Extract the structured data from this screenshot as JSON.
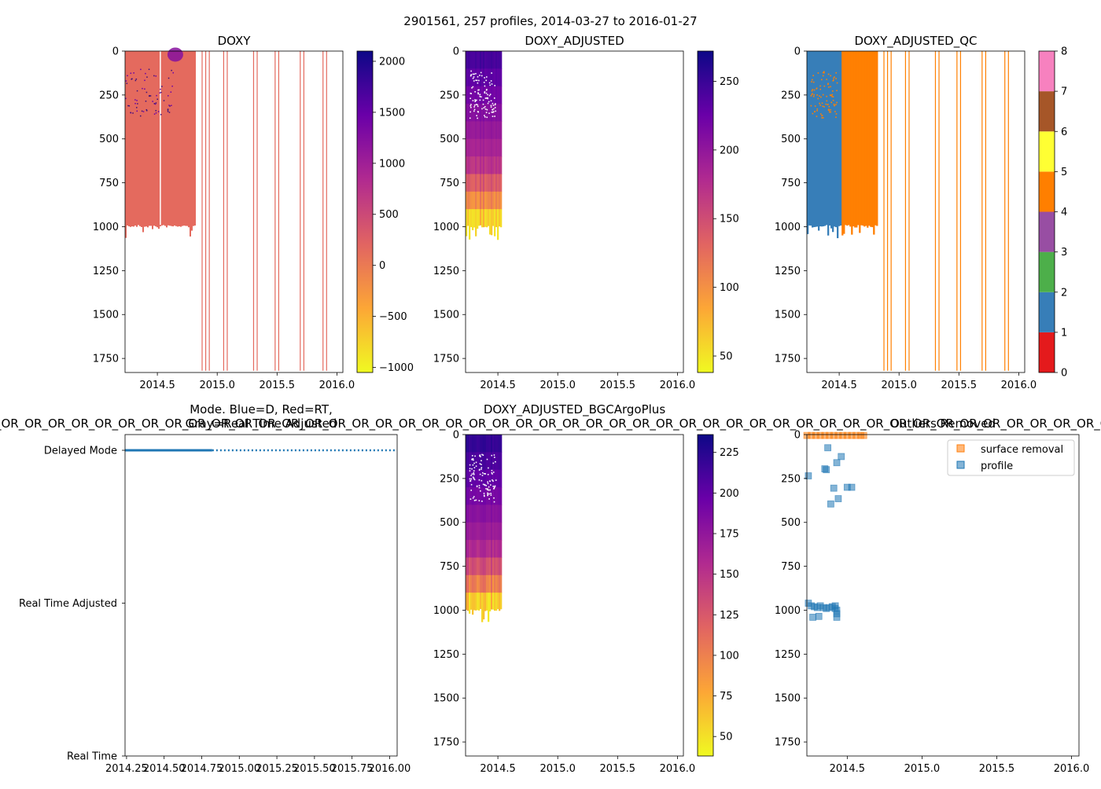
{
  "figure": {
    "suptitle": "2901561, 257 profiles, 2014-03-27 to 2016-01-27"
  },
  "colors": {
    "plasma_r": [
      "#f0f921",
      "#fca636",
      "#e16462",
      "#b12a90",
      "#6a00a8",
      "#0d0887"
    ],
    "qc": [
      "#e41a1c",
      "#377eb8",
      "#4daf4a",
      "#984ea3",
      "#ff7f00",
      "#ffff33",
      "#a65628",
      "#f781bf",
      "#999999"
    ],
    "mode_line": "#1f77b4",
    "surface_removal": "#ff7f0e",
    "profile": "#1f77b4"
  },
  "chart_data": [
    {
      "id": "doxy",
      "type": "heatmap",
      "title": "DOXY",
      "xlim": [
        2014.23,
        2016.05
      ],
      "ylim": [
        1830,
        0
      ],
      "x_ticks": [
        {
          "v": 2014.5,
          "t": "2014.5"
        },
        {
          "v": 2015.0,
          "t": "2015.0"
        },
        {
          "v": 2015.5,
          "t": "2015.5"
        },
        {
          "v": 2016.0,
          "t": "2016.0"
        }
      ],
      "y_ticks": [
        {
          "v": 0,
          "t": "0"
        },
        {
          "v": 250,
          "t": "250"
        },
        {
          "v": 500,
          "t": "500"
        },
        {
          "v": 750,
          "t": "750"
        },
        {
          "v": 1000,
          "t": "1000"
        },
        {
          "v": 1250,
          "t": "1250"
        },
        {
          "v": 1500,
          "t": "1500"
        },
        {
          "v": 1750,
          "t": "1750"
        }
      ],
      "colorbar": {
        "range": [
          -1050,
          2100
        ],
        "ticks": [
          {
            "v": -1000,
            "t": "−1000"
          },
          {
            "v": -500,
            "t": "−500"
          },
          {
            "v": 0,
            "t": "0"
          },
          {
            "v": 500,
            "t": "500"
          },
          {
            "v": 1000,
            "t": "1000"
          },
          {
            "v": 1500,
            "t": "1500"
          },
          {
            "v": 2000,
            "t": "2000"
          }
        ]
      },
      "dense_block": {
        "x_range": [
          2014.23,
          2014.82
        ],
        "depth_range": [
          0,
          990
        ],
        "value": 150
      },
      "sparse_profiles_x": [
        2014.87,
        2014.9,
        2014.93,
        2015.05,
        2015.08,
        2015.3,
        2015.33,
        2015.48,
        2015.51,
        2015.69,
        2015.72,
        2015.88,
        2015.91
      ],
      "sparse_profile_max_depth": 1820
    },
    {
      "id": "doxy_adjusted",
      "type": "heatmap",
      "title": "DOXY_ADJUSTED",
      "xlim": [
        2014.23,
        2016.05
      ],
      "ylim": [
        1830,
        0
      ],
      "x_ticks": [
        {
          "v": 2014.5,
          "t": "2014.5"
        },
        {
          "v": 2015.0,
          "t": "2015.0"
        },
        {
          "v": 2015.5,
          "t": "2015.5"
        },
        {
          "v": 2016.0,
          "t": "2016.0"
        }
      ],
      "y_ticks": [
        {
          "v": 0,
          "t": "0"
        },
        {
          "v": 250,
          "t": "250"
        },
        {
          "v": 500,
          "t": "500"
        },
        {
          "v": 750,
          "t": "750"
        },
        {
          "v": 1000,
          "t": "1000"
        },
        {
          "v": 1250,
          "t": "1250"
        },
        {
          "v": 1500,
          "t": "1500"
        },
        {
          "v": 1750,
          "t": "1750"
        }
      ],
      "colorbar": {
        "range": [
          38,
          272
        ],
        "ticks": [
          {
            "v": 50,
            "t": "50"
          },
          {
            "v": 100,
            "t": "100"
          },
          {
            "v": 150,
            "t": "150"
          },
          {
            "v": 200,
            "t": "200"
          },
          {
            "v": 250,
            "t": "250"
          }
        ]
      },
      "block": {
        "x_range": [
          2014.23,
          2014.52
        ],
        "depth_range": [
          0,
          990
        ]
      },
      "profile_depths": [
        0,
        300,
        650,
        850,
        990
      ],
      "profile_values": [
        250,
        215,
        175,
        110,
        50
      ]
    },
    {
      "id": "doxy_adjusted_qc",
      "type": "heatmap",
      "title": "DOXY_ADJUSTED_QC",
      "xlim": [
        2014.23,
        2016.05
      ],
      "ylim": [
        1830,
        0
      ],
      "x_ticks": [
        {
          "v": 2014.5,
          "t": "2014.5"
        },
        {
          "v": 2015.0,
          "t": "2015.0"
        },
        {
          "v": 2015.5,
          "t": "2015.5"
        },
        {
          "v": 2016.0,
          "t": "2016.0"
        }
      ],
      "y_ticks": [
        {
          "v": 0,
          "t": "0"
        },
        {
          "v": 250,
          "t": "250"
        },
        {
          "v": 500,
          "t": "500"
        },
        {
          "v": 750,
          "t": "750"
        },
        {
          "v": 1000,
          "t": "1000"
        },
        {
          "v": 1250,
          "t": "1250"
        },
        {
          "v": 1500,
          "t": "1500"
        },
        {
          "v": 1750,
          "t": "1750"
        }
      ],
      "colorbar": {
        "range": [
          0,
          8
        ],
        "ticks": [
          {
            "v": 0,
            "t": "0"
          },
          {
            "v": 1,
            "t": "1"
          },
          {
            "v": 2,
            "t": "2"
          },
          {
            "v": 3,
            "t": "3"
          },
          {
            "v": 4,
            "t": "4"
          },
          {
            "v": 5,
            "t": "5"
          },
          {
            "v": 6,
            "t": "6"
          },
          {
            "v": 7,
            "t": "7"
          },
          {
            "v": 8,
            "t": "8"
          }
        ]
      },
      "qc_blocks": [
        {
          "x_range": [
            2014.23,
            2014.52
          ],
          "depth_range": [
            0,
            990
          ],
          "flag": 1
        },
        {
          "x_range": [
            2014.52,
            2014.82
          ],
          "depth_range": [
            0,
            990
          ],
          "flag": 4
        }
      ],
      "sparse_profiles_x": [
        2014.87,
        2014.9,
        2014.93,
        2015.05,
        2015.08,
        2015.3,
        2015.33,
        2015.48,
        2015.51,
        2015.69,
        2015.72,
        2015.88,
        2015.91
      ],
      "sparse_profile_max_depth": 1820,
      "sparse_flag": 4
    },
    {
      "id": "mode",
      "type": "line",
      "title_lines": [
        "Mode. Blue=D, Red=RT,",
        "Gray=Real Time Adjusted"
      ],
      "overflow_text": "_OR_OR_OR_OR_OR_OR_OR_OR_OR_OR_OR_OR_OR_OR_OR_OR_OR_OR_OR_OR_OR_OR_OR_OR_OR_OR_OR_OR_OR_OR_OR_OR_OR_OR_OR_OR_OR_OR_OR_OR_OR_OR_OR_OR_OR_OR_OR_OR_OR_OR_OR_OR_OR_OR_OR_OR_OR_OR_OR_OR_OR_OR_OR_OR_OR_OR_O",
      "xlim": [
        2014.24,
        2016.05
      ],
      "ylim": [
        0,
        2
      ],
      "x_ticks": [
        {
          "v": 2014.25,
          "t": "2014.25"
        },
        {
          "v": 2014.5,
          "t": "2014.50"
        },
        {
          "v": 2014.75,
          "t": "2014.75"
        },
        {
          "v": 2015.0,
          "t": "2015.00"
        },
        {
          "v": 2015.25,
          "t": "2015.25"
        },
        {
          "v": 2015.5,
          "t": "2015.50"
        },
        {
          "v": 2015.75,
          "t": "2015.75"
        },
        {
          "v": 2016.0,
          "t": "2016.00"
        }
      ],
      "y_ticks": [
        {
          "v": 2,
          "t": "Delayed Mode"
        },
        {
          "v": 1,
          "t": "Real Time Adjusted"
        },
        {
          "v": 0,
          "t": "Real Time"
        }
      ],
      "solid_segment": {
        "x": [
          2014.24,
          2014.82
        ],
        "y": 2
      },
      "dotted_segment": {
        "x": [
          2014.82,
          2016.05
        ],
        "y": 2
      }
    },
    {
      "id": "doxy_adjusted_bgc",
      "type": "heatmap",
      "title": "DOXY_ADJUSTED_BGCArgoPlus",
      "xlim": [
        2014.23,
        2016.05
      ],
      "ylim": [
        1830,
        0
      ],
      "x_ticks": [
        {
          "v": 2014.5,
          "t": "2014.5"
        },
        {
          "v": 2015.0,
          "t": "2015.0"
        },
        {
          "v": 2015.5,
          "t": "2015.5"
        },
        {
          "v": 2016.0,
          "t": "2016.0"
        }
      ],
      "y_ticks": [
        {
          "v": 0,
          "t": "0"
        },
        {
          "v": 250,
          "t": "250"
        },
        {
          "v": 500,
          "t": "500"
        },
        {
          "v": 750,
          "t": "750"
        },
        {
          "v": 1000,
          "t": "1000"
        },
        {
          "v": 1250,
          "t": "1250"
        },
        {
          "v": 1500,
          "t": "1500"
        },
        {
          "v": 1750,
          "t": "1750"
        }
      ],
      "colorbar": {
        "range": [
          38,
          236
        ],
        "ticks": [
          {
            "v": 50,
            "t": "50"
          },
          {
            "v": 75,
            "t": "75"
          },
          {
            "v": 100,
            "t": "100"
          },
          {
            "v": 125,
            "t": "125"
          },
          {
            "v": 150,
            "t": "150"
          },
          {
            "v": 175,
            "t": "175"
          },
          {
            "v": 200,
            "t": "200"
          },
          {
            "v": 225,
            "t": "225"
          }
        ]
      },
      "block": {
        "x_range": [
          2014.23,
          2014.52
        ],
        "depth_range": [
          0,
          990
        ]
      },
      "profile_depths": [
        0,
        300,
        650,
        850,
        990
      ],
      "profile_values": [
        225,
        195,
        160,
        105,
        45
      ]
    },
    {
      "id": "outliers",
      "type": "scatter",
      "title": "Outliers Removed",
      "xlim": [
        2014.23,
        2016.05
      ],
      "ylim": [
        1830,
        0
      ],
      "x_ticks": [
        {
          "v": 2014.5,
          "t": "2014.5"
        },
        {
          "v": 2015.0,
          "t": "2015.0"
        },
        {
          "v": 2015.5,
          "t": "2015.5"
        },
        {
          "v": 2016.0,
          "t": "2016.0"
        }
      ],
      "y_ticks": [
        {
          "v": 0,
          "t": "0"
        },
        {
          "v": 250,
          "t": "250"
        },
        {
          "v": 500,
          "t": "500"
        },
        {
          "v": 750,
          "t": "750"
        },
        {
          "v": 1000,
          "t": "1000"
        },
        {
          "v": 1250,
          "t": "1250"
        },
        {
          "v": 1500,
          "t": "1500"
        },
        {
          "v": 1750,
          "t": "1750"
        }
      ],
      "legend": [
        {
          "name": "surface removal",
          "color": "#ff7f0e"
        },
        {
          "name": "profile",
          "color": "#1f77b4"
        }
      ],
      "series": [
        {
          "name": "surface removal",
          "points": [
            [
              2014.23,
              5
            ],
            [
              2014.26,
              5
            ],
            [
              2014.29,
              5
            ],
            [
              2014.32,
              5
            ],
            [
              2014.35,
              5
            ],
            [
              2014.38,
              5
            ],
            [
              2014.41,
              5
            ],
            [
              2014.44,
              5
            ],
            [
              2014.47,
              5
            ],
            [
              2014.5,
              5
            ],
            [
              2014.53,
              5
            ],
            [
              2014.56,
              5
            ],
            [
              2014.59,
              5
            ],
            [
              2014.61,
              5
            ]
          ]
        },
        {
          "name": "profile",
          "points": [
            [
              2014.24,
              235
            ],
            [
              2014.37,
              75
            ],
            [
              2014.35,
              195
            ],
            [
              2014.36,
              200
            ],
            [
              2014.43,
              160
            ],
            [
              2014.46,
              125
            ],
            [
              2014.41,
              305
            ],
            [
              2014.5,
              300
            ],
            [
              2014.53,
              300
            ],
            [
              2014.44,
              365
            ],
            [
              2014.39,
              395
            ],
            [
              2014.24,
              960
            ],
            [
              2014.26,
              975
            ],
            [
              2014.28,
              980
            ],
            [
              2014.3,
              985
            ],
            [
              2014.32,
              975
            ],
            [
              2014.34,
              985
            ],
            [
              2014.36,
              990
            ],
            [
              2014.38,
              985
            ],
            [
              2014.4,
              980
            ],
            [
              2014.42,
              990
            ],
            [
              2014.43,
              1000
            ],
            [
              2014.43,
              1020
            ],
            [
              2014.42,
              975
            ],
            [
              2014.27,
              1040
            ],
            [
              2014.31,
              1035
            ],
            [
              2014.43,
              1040
            ]
          ]
        }
      ]
    }
  ]
}
